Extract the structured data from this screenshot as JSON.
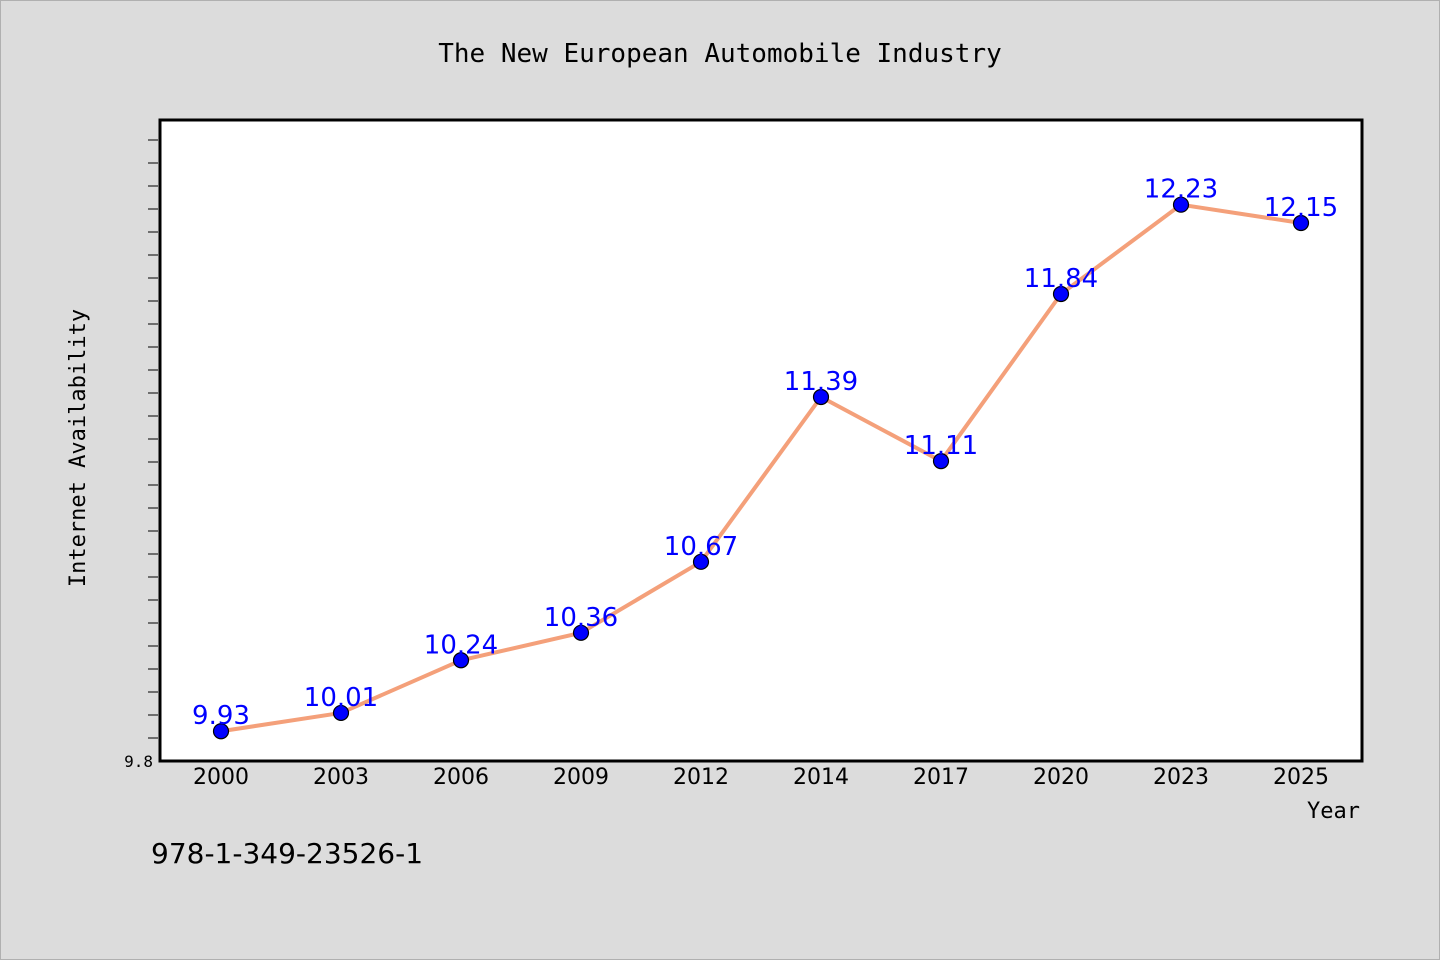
{
  "chart_data": {
    "type": "line",
    "title": "The New European Automobile Industry",
    "xlabel": "Year",
    "ylabel": "Internet Availability",
    "categories": [
      "2000",
      "2003",
      "2006",
      "2009",
      "2012",
      "2014",
      "2017",
      "2020",
      "2023",
      "2025"
    ],
    "series": [
      {
        "values": [
          9.93,
          10.01,
          10.24,
          10.36,
          10.67,
          11.39,
          11.11,
          11.84,
          12.23,
          12.15
        ],
        "data_labels": [
          "9.93",
          "10.01",
          "10.24",
          "10.36",
          "10.67",
          "11.39",
          "11.11",
          "11.84",
          "12.23",
          "12.15"
        ],
        "line_color": "#f4a07a",
        "marker_color": "#0000ff",
        "label_color": "#0000ff"
      }
    ],
    "y_tick_labels": [
      {
        "value": 9.8,
        "label": "9.8"
      }
    ],
    "ylim": [
      9.8,
      12.6
    ],
    "grid": false,
    "legend": "none"
  },
  "footer_text": "978-1-349-23526-1"
}
